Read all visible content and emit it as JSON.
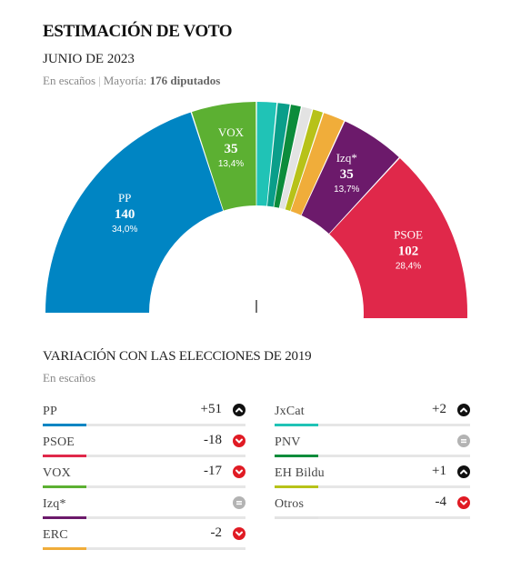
{
  "header": {
    "title": "ESTIMACIÓN DE VOTO",
    "subtitle": "JUNIO DE 2023",
    "meta_prefix": "En escaños",
    "meta_separator": "|",
    "meta_majority_label": "Mayoría:",
    "meta_majority_value": "176 diputados"
  },
  "chart_data": {
    "type": "hemicycle",
    "total_seats": 350,
    "majority": 176,
    "seats": [
      {
        "party": "PP",
        "seats": 140,
        "pct": "34,0%",
        "color": "#0085c3",
        "label": true
      },
      {
        "party": "VOX",
        "seats": 35,
        "pct": "13,4%",
        "color": "#5cb032",
        "label": true
      },
      {
        "party": "ERC",
        "seats": 11,
        "color": "#20c3b6",
        "label": false
      },
      {
        "party": "JxCat",
        "seats": 7,
        "color": "#0a9e8a",
        "label": false
      },
      {
        "party": "PNV",
        "seats": 6,
        "color": "#0c8c3b",
        "label": false
      },
      {
        "party": "Otros",
        "seats": 6,
        "color": "#e3e3e3",
        "label": false
      },
      {
        "party": "EH Bildu",
        "seats": 6,
        "color": "#b7c219",
        "label": false
      },
      {
        "party": "Otros",
        "seats": 12,
        "color": "#f0ad3a",
        "label": false
      },
      {
        "party": "Izq*",
        "seats": 35,
        "pct": "13,7%",
        "color": "#6c1a6b",
        "label": true
      },
      {
        "party": "PSOE",
        "seats": 102,
        "pct": "28,4%",
        "color": "#e0284a",
        "label": true
      }
    ]
  },
  "variation": {
    "title": "VARIACIÓN CON LAS ELECCIONES DE 2019",
    "subtitle": "En escaños",
    "left": [
      {
        "party": "PP",
        "value": "+51",
        "trend": "up",
        "color": "#0085c3"
      },
      {
        "party": "PSOE",
        "value": "-18",
        "trend": "down",
        "color": "#e0284a"
      },
      {
        "party": "VOX",
        "value": "-17",
        "trend": "down",
        "color": "#5cb032"
      },
      {
        "party": "Izq*",
        "value": "",
        "trend": "equal",
        "color": "#6c1a6b"
      },
      {
        "party": "ERC",
        "value": "-2",
        "trend": "down",
        "color": "#f0ad3a"
      }
    ],
    "right": [
      {
        "party": "JxCat",
        "value": "+2",
        "trend": "up",
        "color": "#20c3b6"
      },
      {
        "party": "PNV",
        "value": "",
        "trend": "equal",
        "color": "#0c8c3b"
      },
      {
        "party": "EH Bildu",
        "value": "+1",
        "trend": "up",
        "color": "#b7c219"
      },
      {
        "party": "Otros",
        "value": "-4",
        "trend": "down",
        "color": "#e3e3e3"
      }
    ],
    "trend_colors": {
      "up": "#111111",
      "down": "#e01b24",
      "equal": "#b3b3b3"
    }
  }
}
